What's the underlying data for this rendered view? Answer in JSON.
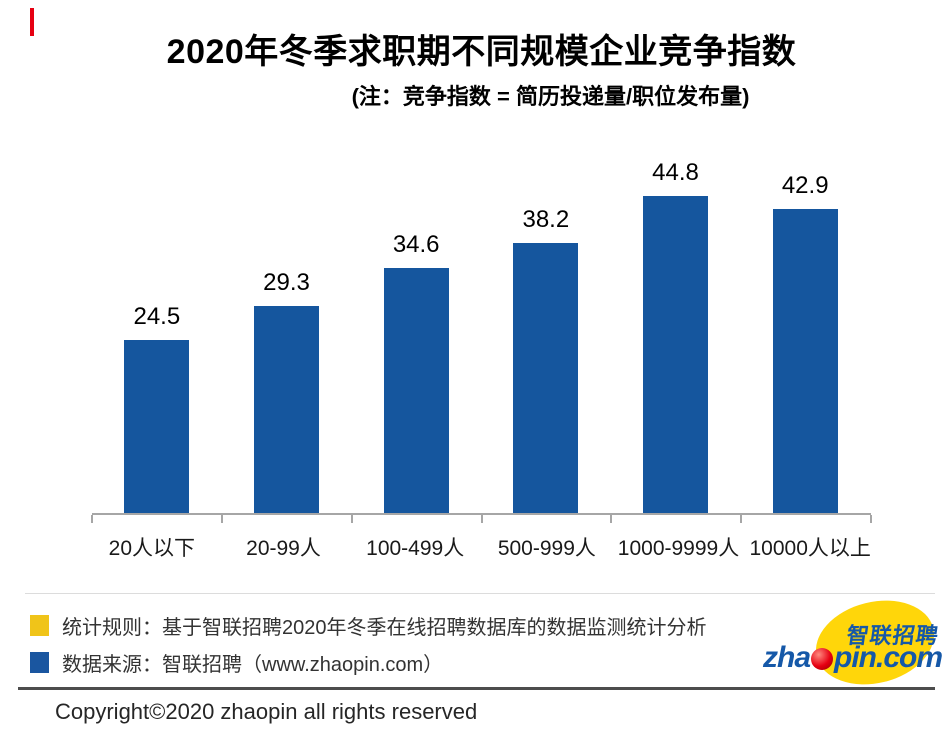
{
  "accent_color": "#e60012",
  "header": {
    "title": "2020年冬季求职期不同规模企业竞争指数",
    "subtitle": "(注：竞争指数 = 简历投递量/职位发布量)"
  },
  "chart_data": {
    "type": "bar",
    "categories": [
      "20人以下",
      "20-99人",
      "100-499人",
      "500-999人",
      "1000-9999人",
      "10000人以上"
    ],
    "values": [
      24.5,
      29.3,
      34.6,
      38.2,
      44.8,
      42.9
    ],
    "series_name": "竞争指数",
    "title": "2020年冬季求职期不同规模企业竞争指数",
    "xlabel": "",
    "ylabel": "",
    "ylim": [
      0,
      52.7
    ],
    "grid": false,
    "legend_position": "none",
    "value_labels_shown": true,
    "bar_color": "#15569e",
    "axis_color": "#a6a6a6"
  },
  "footer": {
    "note1": "统计规则：基于智联招聘2020年冬季在线招聘数据库的数据监测统计分析",
    "note2": "数据来源：智联招聘（www.zhaopin.com）",
    "note1_marker_color": "#f0c419",
    "note2_marker_color": "#1a56a0",
    "copyright": "Copyright©2020 zhaopin all rights reserved"
  },
  "logo": {
    "zha": "zha",
    "pin": "pin.com",
    "cn": "智联招聘"
  }
}
